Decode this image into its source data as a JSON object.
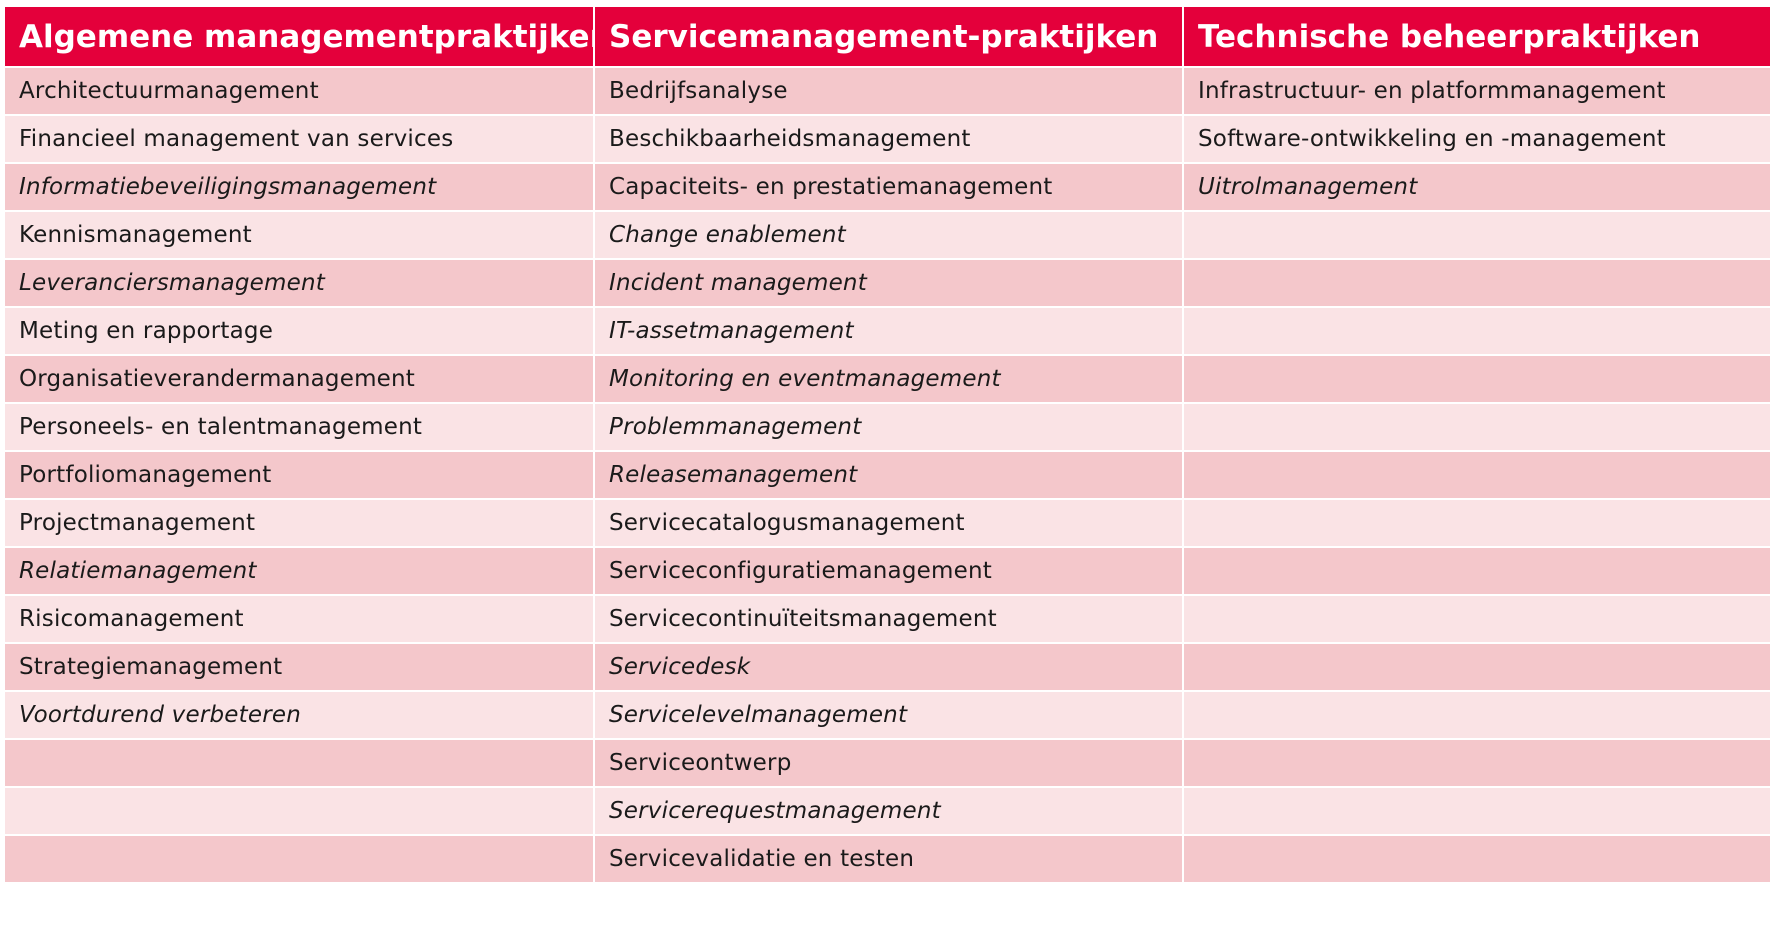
{
  "headers": [
    "Algemene managementpraktijken",
    "Servicemanagement-praktijken",
    "Technische beheerpraktijken"
  ],
  "colors": {
    "header_bg": "#e4003b",
    "header_text": "#ffffff",
    "row_dark": "#f4c7cb",
    "row_light": "#fae3e5"
  },
  "rows": [
    [
      {
        "t": "Architectuurmanagement",
        "i": false
      },
      {
        "t": "Bedrijfsanalyse",
        "i": false
      },
      {
        "t": "Infrastructuur- en platformmanagement",
        "i": false
      }
    ],
    [
      {
        "t": "Financieel management van services",
        "i": false
      },
      {
        "t": "Beschikbaarheidsmanagement",
        "i": false
      },
      {
        "t": "Software-ontwikkeling en -management",
        "i": false
      }
    ],
    [
      {
        "t": "Informatiebeveiligingsmanagement",
        "i": true
      },
      {
        "t": "Capaciteits- en prestatiemanagement",
        "i": false
      },
      {
        "t": "Uitrolmanagement",
        "i": true
      }
    ],
    [
      {
        "t": "Kennismanagement",
        "i": false
      },
      {
        "t": "Change enablement",
        "i": true
      },
      {
        "t": "",
        "i": false
      }
    ],
    [
      {
        "t": "Leveranciersmanagement",
        "i": true
      },
      {
        "t": "Incident management",
        "i": true
      },
      {
        "t": "",
        "i": false
      }
    ],
    [
      {
        "t": "Meting en rapportage",
        "i": false
      },
      {
        "t": "IT-assetmanagement",
        "i": true
      },
      {
        "t": "",
        "i": false
      }
    ],
    [
      {
        "t": "Organisatieverandermanagement",
        "i": false
      },
      {
        "t": "Monitoring en eventmanagement",
        "i": true
      },
      {
        "t": "",
        "i": false
      }
    ],
    [
      {
        "t": "Personeels- en talentmanagement",
        "i": false
      },
      {
        "t": "Problemmanagement",
        "i": true
      },
      {
        "t": "",
        "i": false
      }
    ],
    [
      {
        "t": "Portfoliomanagement",
        "i": false
      },
      {
        "t": "Releasemanagement",
        "i": true
      },
      {
        "t": "",
        "i": false
      }
    ],
    [
      {
        "t": "Projectmanagement",
        "i": false
      },
      {
        "t": "Servicecatalogusmanagement",
        "i": false
      },
      {
        "t": "",
        "i": false
      }
    ],
    [
      {
        "t": "Relatiemanagement",
        "i": true
      },
      {
        "t": "Serviceconfiguratiemanagement",
        "i": false
      },
      {
        "t": "",
        "i": false
      }
    ],
    [
      {
        "t": "Risicomanagement",
        "i": false
      },
      {
        "t": "Servicecontinuïteitsmanagement",
        "i": false
      },
      {
        "t": "",
        "i": false
      }
    ],
    [
      {
        "t": "Strategiemanagement",
        "i": false
      },
      {
        "t": "Servicedesk",
        "i": true
      },
      {
        "t": "",
        "i": false
      }
    ],
    [
      {
        "t": "Voortdurend verbeteren",
        "i": true
      },
      {
        "t": "Servicelevelmanagement",
        "i": true
      },
      {
        "t": "",
        "i": false
      }
    ],
    [
      {
        "t": "",
        "i": false
      },
      {
        "t": "Serviceontwerp",
        "i": false
      },
      {
        "t": "",
        "i": false
      }
    ],
    [
      {
        "t": "",
        "i": false
      },
      {
        "t": "Servicerequestmanagement",
        "i": true
      },
      {
        "t": "",
        "i": false
      }
    ],
    [
      {
        "t": "",
        "i": false
      },
      {
        "t": "Servicevalidatie en testen",
        "i": false
      },
      {
        "t": "",
        "i": false
      }
    ]
  ]
}
